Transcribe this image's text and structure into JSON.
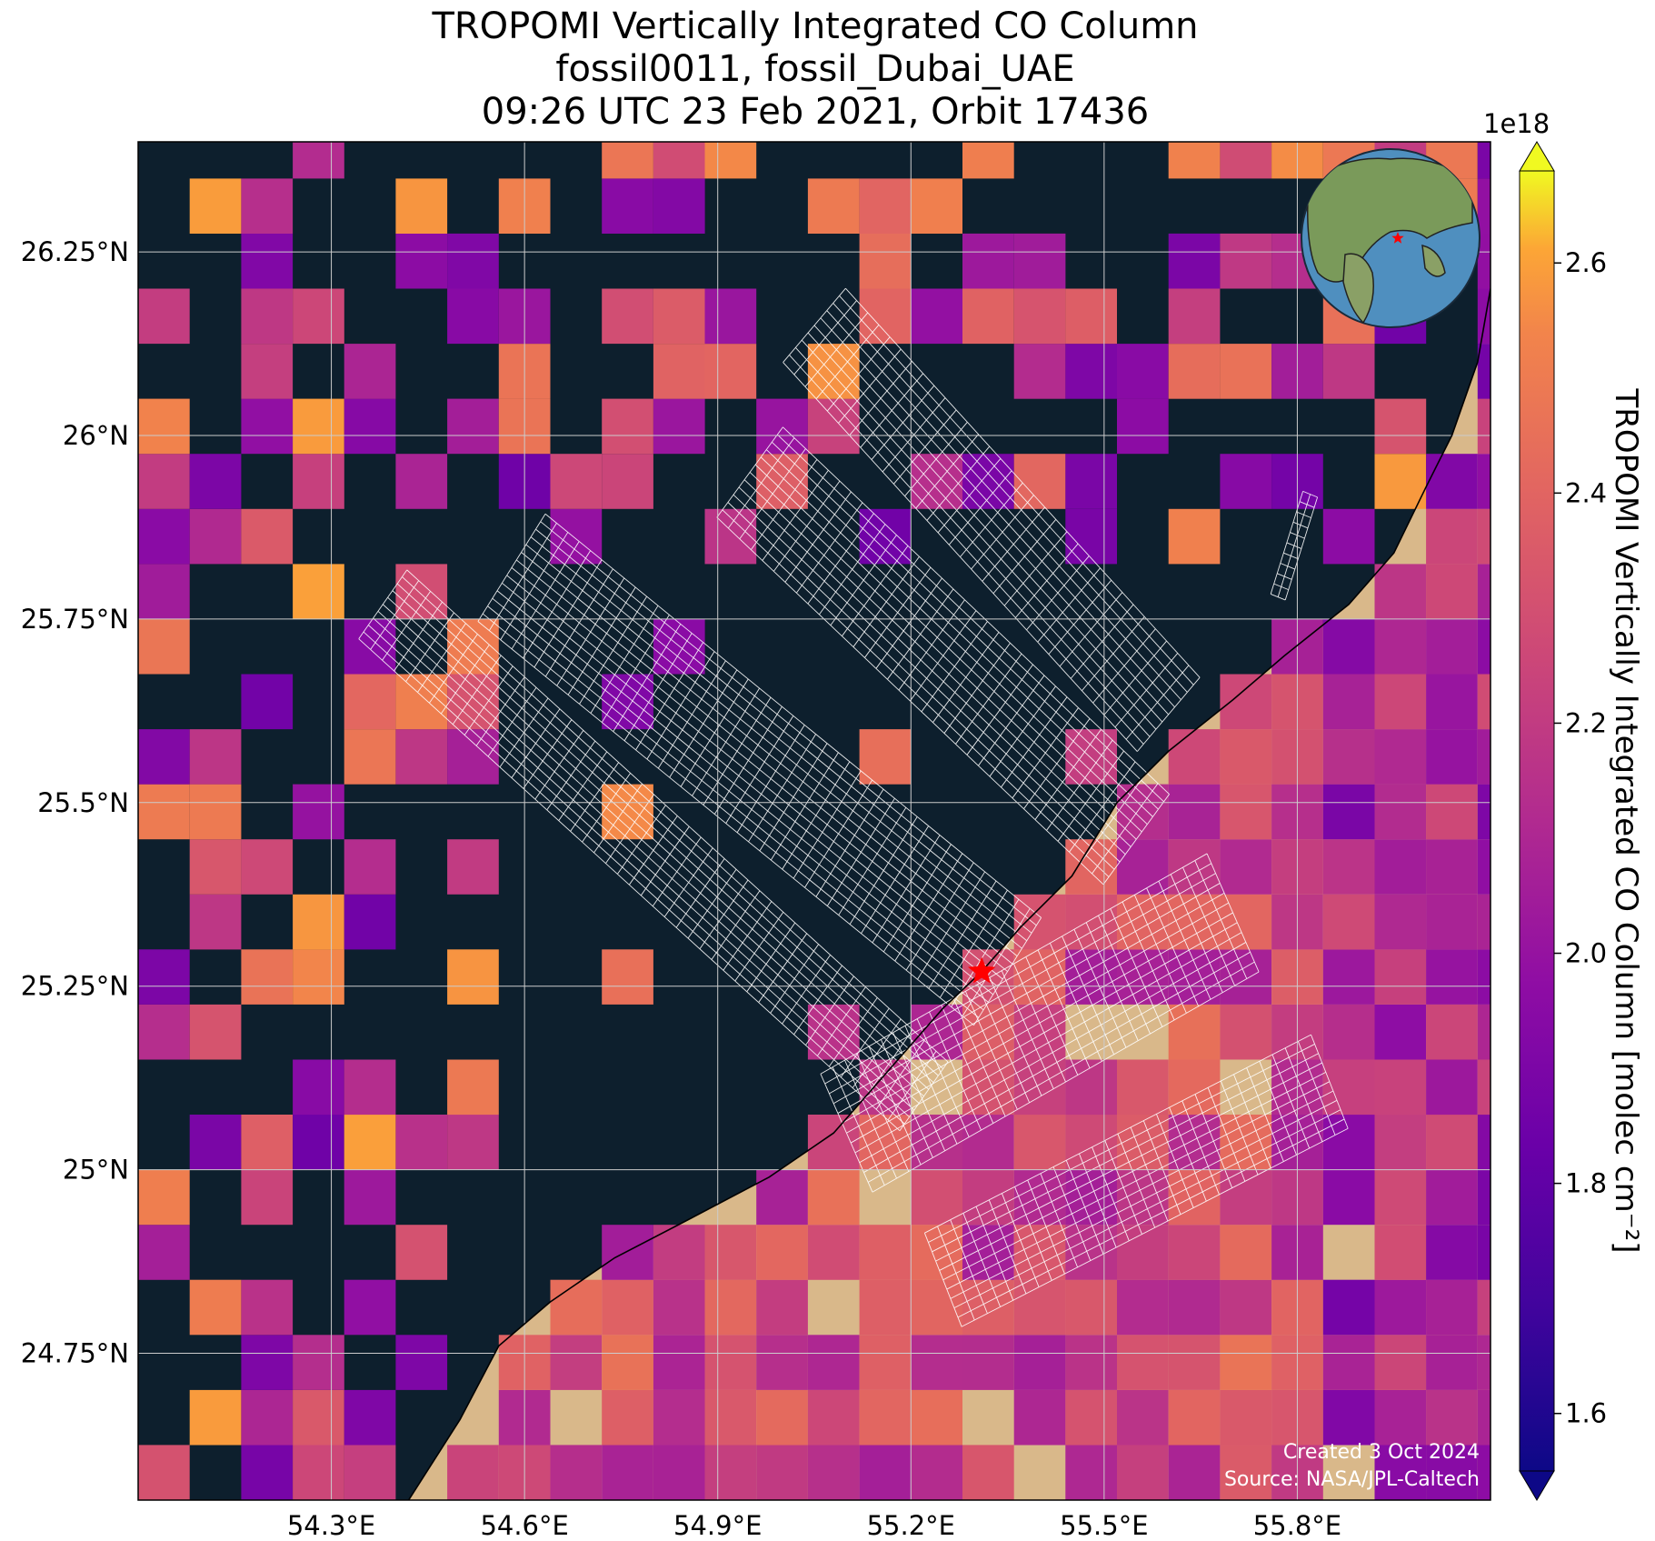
{
  "title": {
    "line1": "TROPOMI Vertically Integrated CO Column",
    "line2": "fossil0011, fossil_Dubai_UAE",
    "line3": "09:26 UTC 23 Feb 2021, Orbit 17436"
  },
  "map": {
    "lon_range": [
      54.0,
      56.1
    ],
    "lat_range": [
      24.55,
      26.4
    ],
    "lon_ticks": [
      {
        "value": 54.3,
        "label": "54.3°E"
      },
      {
        "value": 54.6,
        "label": "54.6°E"
      },
      {
        "value": 54.9,
        "label": "54.9°E"
      },
      {
        "value": 55.2,
        "label": "55.2°E"
      },
      {
        "value": 55.5,
        "label": "55.5°E"
      },
      {
        "value": 55.8,
        "label": "55.8°E"
      }
    ],
    "lat_ticks": [
      {
        "value": 26.25,
        "label": "26.25°N"
      },
      {
        "value": 26.0,
        "label": "26°N"
      },
      {
        "value": 25.75,
        "label": "25.75°N"
      },
      {
        "value": 25.5,
        "label": "25.5°N"
      },
      {
        "value": 25.25,
        "label": "25.25°N"
      },
      {
        "value": 25.0,
        "label": "25°N"
      },
      {
        "value": 24.75,
        "label": "24.75°N"
      }
    ],
    "site_marker": {
      "lon": 55.31,
      "lat": 25.27,
      "color": "#ff0000"
    },
    "ocean_color": "#0d1f2d",
    "land_color": "#d9b88a",
    "gridline_color": "#cccccc",
    "icons": [
      "red-star-icon",
      "globe-inset-icon"
    ]
  },
  "colorbar": {
    "label": "TROPOMI Vertically Integrated CO Column [molec cm⁻²]",
    "multiplier": "1e18",
    "min": 1.55,
    "max": 2.68,
    "ticks": [
      {
        "value": 1.6,
        "label": "1.6"
      },
      {
        "value": 1.8,
        "label": "1.8"
      },
      {
        "value": 2.0,
        "label": "2.0"
      },
      {
        "value": 2.2,
        "label": "2.2"
      },
      {
        "value": 2.4,
        "label": "2.4"
      },
      {
        "value": 2.6,
        "label": "2.6"
      }
    ],
    "colormap": "plasma",
    "extend": "both"
  },
  "footer": {
    "created": "Created 3 Oct 2024",
    "source": "Source: NASA/JPL-Caltech"
  }
}
